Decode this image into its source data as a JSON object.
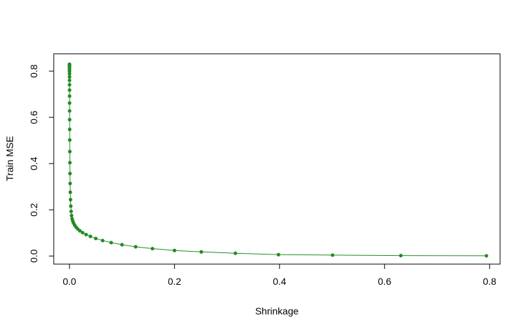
{
  "chart_data": {
    "type": "line",
    "title": "",
    "xlabel": "Shrinkage",
    "ylabel": "Train MSE",
    "xlim": [
      -0.03,
      0.82
    ],
    "ylim": [
      -0.035,
      0.875
    ],
    "xticks": [
      0.0,
      0.2,
      0.4,
      0.6,
      0.8
    ],
    "xtick_labels": [
      "0.0",
      "0.2",
      "0.4",
      "0.6",
      "0.8"
    ],
    "yticks": [
      0.0,
      0.2,
      0.4,
      0.6,
      0.8
    ],
    "ytick_labels": [
      "0.0",
      "0.2",
      "0.4",
      "0.6",
      "0.8"
    ],
    "grid": false,
    "legend": "none",
    "series_color": "#228B22",
    "series": [
      {
        "x": [
          1e-05,
          1.26e-05,
          1.58e-05,
          2e-05,
          2.51e-05,
          3.16e-05,
          3.98e-05,
          5.01e-05,
          6.31e-05,
          7.94e-05,
          0.0001,
          0.000126,
          0.000158,
          0.0002,
          0.000251,
          0.000316,
          0.000398,
          0.000501,
          0.000631,
          0.000794,
          0.001,
          0.00126,
          0.00158,
          0.002,
          0.00251,
          0.00316,
          0.00398,
          0.00501,
          0.00631,
          0.00794,
          0.01,
          0.0126,
          0.0158,
          0.02,
          0.0251,
          0.0316,
          0.0398,
          0.0501,
          0.0631,
          0.0794,
          0.1,
          0.126,
          0.158,
          0.2,
          0.251,
          0.316,
          0.398,
          0.501,
          0.631,
          0.794
        ],
        "y": [
          0.83,
          0.827,
          0.823,
          0.819,
          0.813,
          0.806,
          0.798,
          0.788,
          0.775,
          0.76,
          0.741,
          0.718,
          0.692,
          0.662,
          0.628,
          0.59,
          0.548,
          0.502,
          0.452,
          0.404,
          0.357,
          0.314,
          0.276,
          0.244,
          0.216,
          0.193,
          0.175,
          0.161,
          0.151,
          0.142,
          0.133,
          0.125,
          0.117,
          0.109,
          0.101,
          0.093,
          0.085,
          0.076,
          0.067,
          0.058,
          0.049,
          0.04,
          0.032,
          0.024,
          0.018,
          0.012,
          0.006,
          0.004,
          0.002,
          0.001
        ]
      }
    ]
  }
}
